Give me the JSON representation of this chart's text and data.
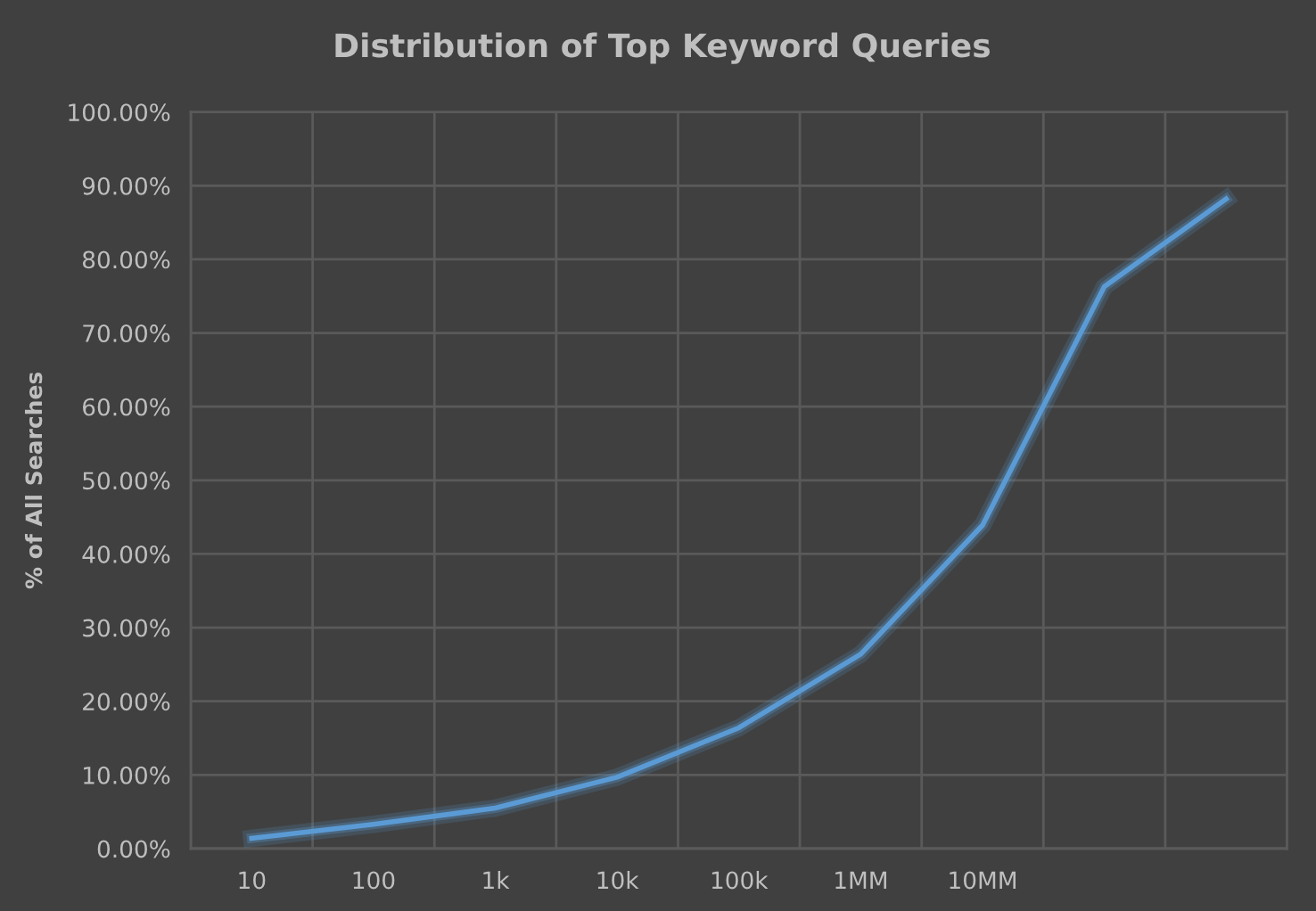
{
  "chart_data": {
    "type": "line",
    "title": "Distribution of Top Keyword Queries",
    "ylabel": "% of All Searches",
    "categories": [
      "10",
      "100",
      "1k",
      "10k",
      "100k",
      "1MM",
      "10MM",
      null,
      null
    ],
    "series": [
      {
        "color": "#5b9bd5",
        "values": [
          1.4,
          3.3,
          5.5,
          9.7,
          16.4,
          26.4,
          43.9,
          76.3,
          88.2
        ]
      }
    ],
    "ylim": [
      0,
      100
    ],
    "yticks": [
      {
        "value": 0,
        "label": "0.00%"
      },
      {
        "value": 10,
        "label": "10.00%"
      },
      {
        "value": 20,
        "label": "20.00%"
      },
      {
        "value": 30,
        "label": "30.00%"
      },
      {
        "value": 40,
        "label": "40.00%"
      },
      {
        "value": 50,
        "label": "50.00%"
      },
      {
        "value": 60,
        "label": "60.00%"
      },
      {
        "value": 70,
        "label": "70.00%"
      },
      {
        "value": 80,
        "label": "80.00%"
      },
      {
        "value": 90,
        "label": "90.00%"
      },
      {
        "value": 100,
        "label": "100.00%"
      }
    ],
    "grid": true,
    "line_style": "solid"
  }
}
